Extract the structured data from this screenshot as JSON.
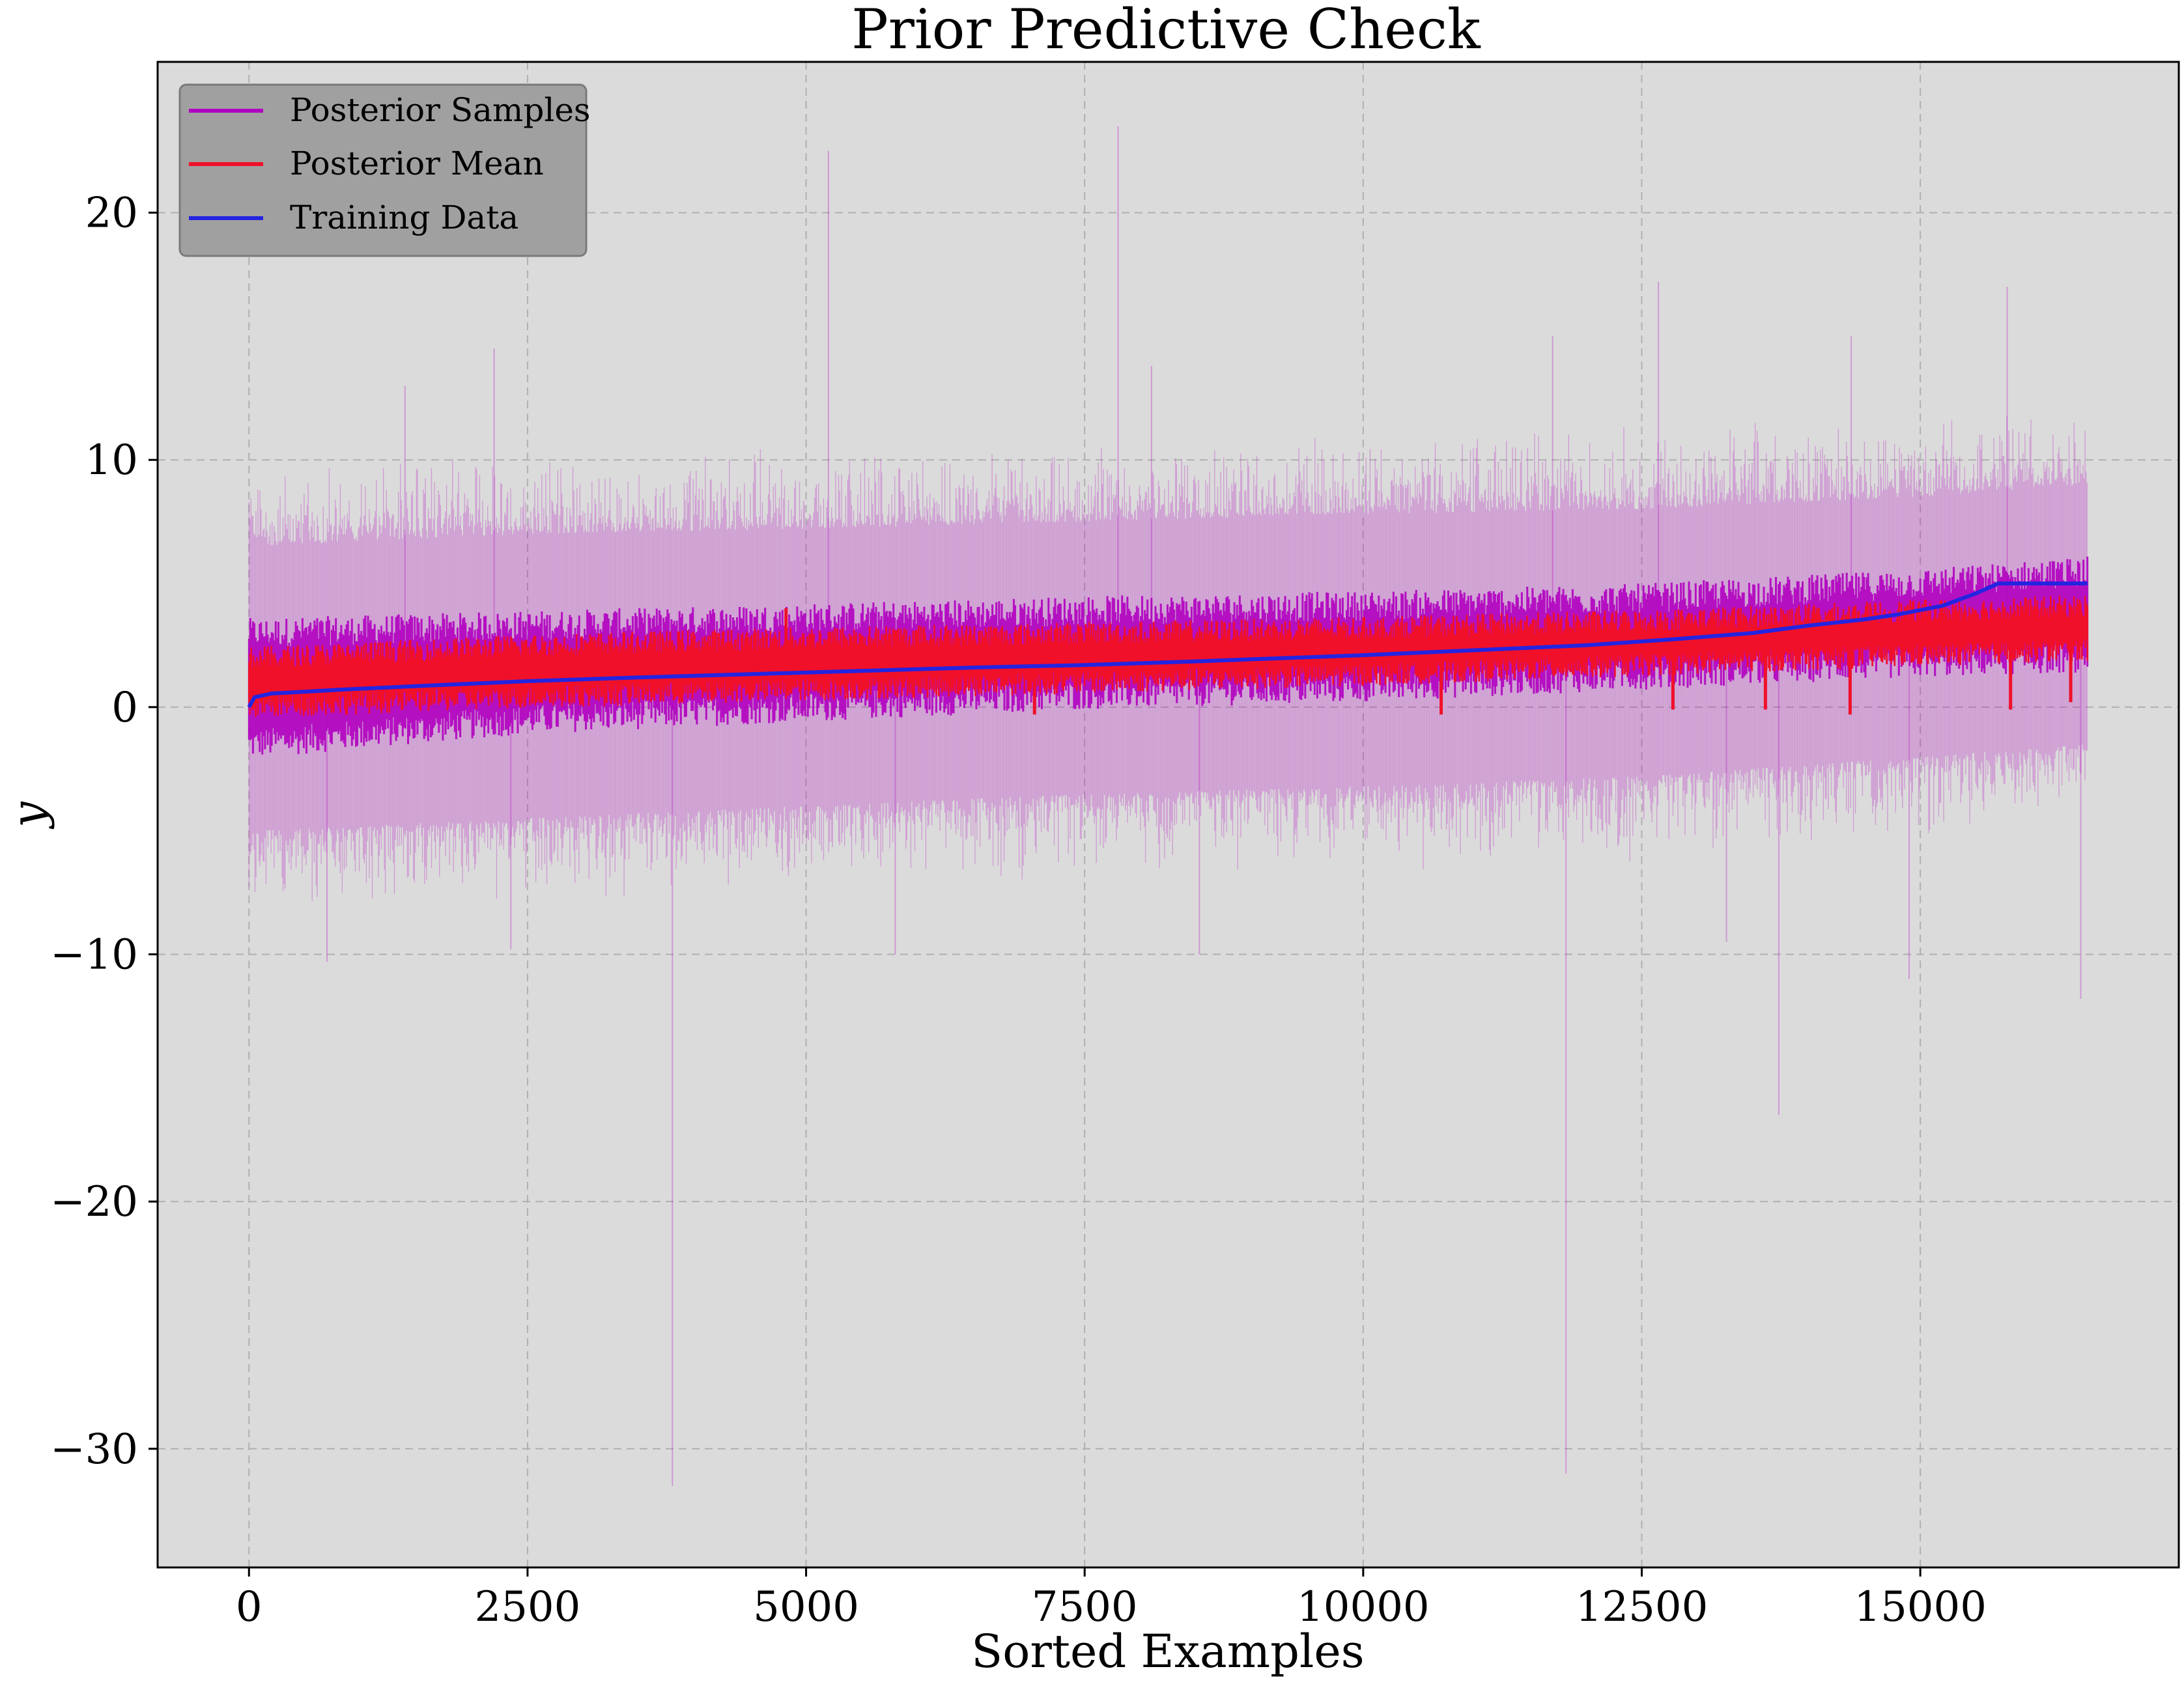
{
  "chart_data": {
    "type": "line",
    "title": "Prior Predictive Check",
    "xlabel": "Sorted Examples",
    "ylabel": "y",
    "xlim": [
      -820,
      17320
    ],
    "ylim": [
      -34.8,
      26.1
    ],
    "x_ticks": [
      0,
      2500,
      5000,
      7500,
      10000,
      12500,
      15000
    ],
    "x_tick_labels": [
      "0",
      "2500",
      "5000",
      "7500",
      "10000",
      "12500",
      "15000"
    ],
    "y_ticks": [
      -30,
      -20,
      -10,
      0,
      10,
      20
    ],
    "y_tick_labels": [
      "−30",
      "−20",
      "−10",
      "0",
      "10",
      "20"
    ],
    "grid": true,
    "legend_position": "top-left",
    "series": [
      {
        "name": "Posterior Samples",
        "color": "#b000c0",
        "style": "many thin noisy sample lines",
        "x": [
          0,
          2500,
          5000,
          7500,
          10000,
          12500,
          15000,
          16500
        ],
        "band_low": [
          -1.5,
          -0.5,
          0.0,
          0.5,
          0.8,
          1.3,
          1.8,
          2.0
        ],
        "band_high": [
          3.0,
          3.3,
          3.6,
          3.9,
          4.1,
          4.4,
          5.0,
          5.5
        ],
        "outer_low": [
          -5.0,
          -4.5,
          -4.0,
          -3.5,
          -3.2,
          -2.8,
          -2.0,
          -1.5
        ],
        "outer_high": [
          6.5,
          7.0,
          7.2,
          7.5,
          7.8,
          8.0,
          8.5,
          9.0
        ],
        "extreme_spikes": [
          {
            "x": 3800,
            "y": -31.5
          },
          {
            "x": 11820,
            "y": -31.0
          },
          {
            "x": 13730,
            "y": -16.5
          },
          {
            "x": 7800,
            "y": 23.5
          },
          {
            "x": 5200,
            "y": 22.5
          },
          {
            "x": 12650,
            "y": 17.2
          },
          {
            "x": 15780,
            "y": 17.0
          },
          {
            "x": 11700,
            "y": 15.0
          },
          {
            "x": 14380,
            "y": 15.0
          },
          {
            "x": 2200,
            "y": 14.5
          },
          {
            "x": 8100,
            "y": 13.8
          },
          {
            "x": 1400,
            "y": 13.0
          },
          {
            "x": 16440,
            "y": -11.8
          },
          {
            "x": 14900,
            "y": -11.0
          },
          {
            "x": 8530,
            "y": -10.0
          },
          {
            "x": 700,
            "y": -10.3
          },
          {
            "x": 2350,
            "y": -9.8
          },
          {
            "x": 5800,
            "y": -10.0
          },
          {
            "x": 13260,
            "y": -9.5
          }
        ]
      },
      {
        "name": "Posterior Mean",
        "color": "#f0102a",
        "style": "noisy thick line",
        "x": [
          0,
          2500,
          5000,
          7500,
          10000,
          12500,
          15000,
          16500
        ],
        "band_low": [
          0.0,
          0.4,
          0.7,
          1.0,
          1.3,
          1.7,
          2.1,
          2.3
        ],
        "band_high": [
          2.0,
          2.5,
          2.8,
          3.0,
          3.2,
          3.5,
          3.9,
          4.1
        ],
        "spikes": [
          {
            "x": 4820,
            "y": 4.0
          },
          {
            "x": 7050,
            "y": -0.3
          },
          {
            "x": 10700,
            "y": -0.3
          },
          {
            "x": 12780,
            "y": -0.1
          },
          {
            "x": 13610,
            "y": -0.1
          },
          {
            "x": 14370,
            "y": -0.3
          },
          {
            "x": 15810,
            "y": -0.1
          },
          {
            "x": 16350,
            "y": 0.2
          }
        ]
      },
      {
        "name": "Training Data",
        "color": "#2424e0",
        "style": "smooth line",
        "x": [
          0,
          50,
          200,
          800,
          1500,
          2500,
          3500,
          5000,
          6500,
          7500,
          8500,
          10000,
          11000,
          12000,
          12800,
          13500,
          14000,
          14500,
          14800,
          15200,
          15500,
          15700,
          16000,
          16500
        ],
        "y": [
          0.0,
          0.4,
          0.55,
          0.7,
          0.85,
          1.05,
          1.2,
          1.4,
          1.6,
          1.7,
          1.85,
          2.1,
          2.3,
          2.5,
          2.75,
          3.0,
          3.3,
          3.55,
          3.75,
          4.1,
          4.6,
          5.0,
          5.0,
          5.0
        ]
      }
    ]
  }
}
